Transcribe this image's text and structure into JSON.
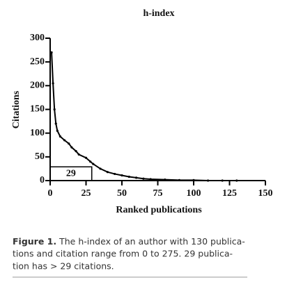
{
  "chart_data": {
    "type": "line",
    "title": "h-index",
    "xlabel": "Ranked publications",
    "ylabel": "Citations",
    "xlim": [
      0,
      150
    ],
    "xticks": [
      0,
      25,
      50,
      75,
      100,
      125,
      150
    ],
    "ylim": [
      0,
      300
    ],
    "yticks": [
      0,
      50,
      100,
      150,
      200,
      250,
      300
    ],
    "series": [
      {
        "color": "#000000",
        "x": [
          1,
          2,
          3,
          4,
          5,
          7,
          10,
          13,
          15,
          18,
          20,
          25,
          28,
          30,
          35,
          40,
          45,
          50,
          55,
          60,
          65,
          70,
          80,
          90,
          100,
          110,
          120,
          130
        ],
        "values": [
          270,
          205,
          150,
          120,
          105,
          93,
          85,
          78,
          70,
          62,
          55,
          48,
          40,
          35,
          25,
          18,
          14,
          11,
          8,
          6,
          4,
          3,
          2,
          1,
          1,
          0,
          0,
          0
        ]
      }
    ],
    "h_index": 29
  },
  "caption": {
    "label": "Figure 1.",
    "lines": [
      "The h-index of an author with 130 publica-",
      "tions and citation range from 0 to 275. 29 publica-",
      "tion has > 29 citations."
    ]
  }
}
